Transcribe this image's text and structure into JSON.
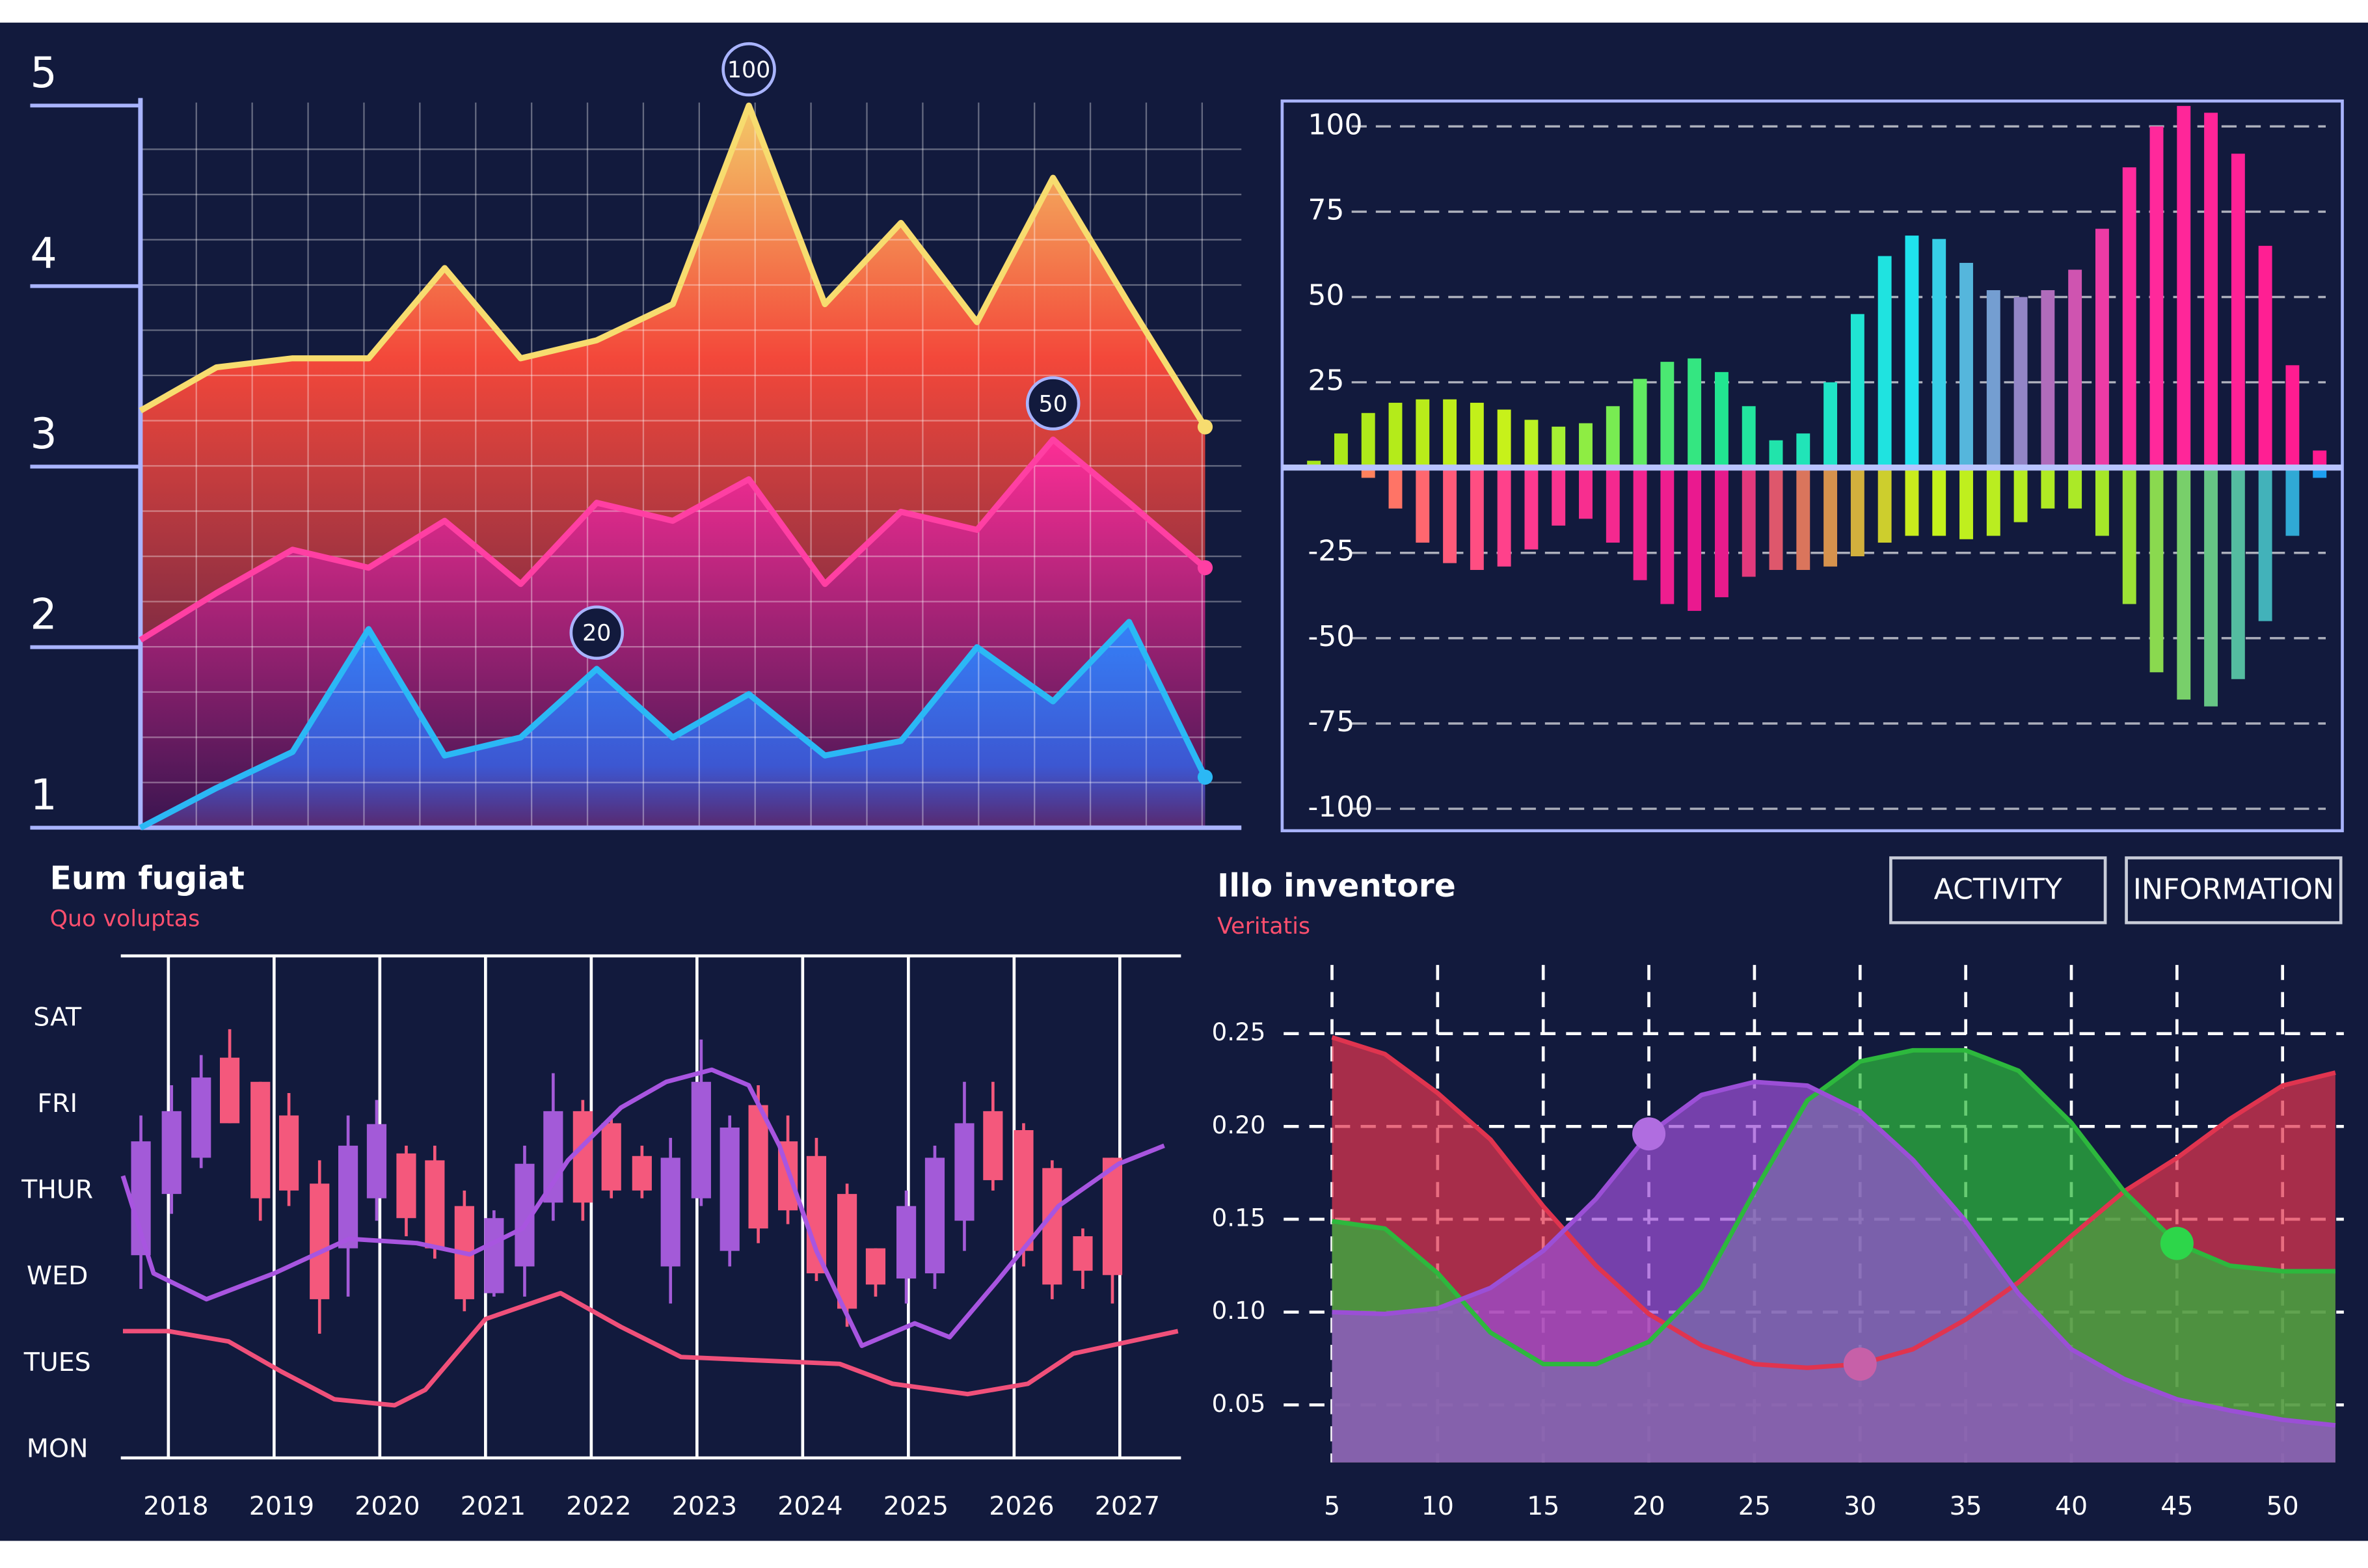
{
  "chart_data": [
    {
      "type": "area",
      "categories": [
        null,
        null,
        null,
        null,
        null,
        null,
        null,
        null,
        null,
        null,
        null,
        null,
        null,
        null,
        null
      ],
      "ylim": [
        1,
        5
      ],
      "yticks": [
        1,
        2,
        3,
        4,
        5
      ],
      "series": [
        {
          "color": "#f7dc6f",
          "values": [
            3.31,
            3.55,
            3.6,
            3.6,
            4.1,
            3.6,
            3.7,
            3.9,
            5.0,
            3.9,
            4.35,
            3.8,
            4.6,
            3.9,
            3.22
          ]
        },
        {
          "color": "#ff3fa3",
          "values": [
            2.04,
            2.3,
            2.54,
            2.44,
            2.7,
            2.35,
            2.8,
            2.7,
            2.93,
            2.35,
            2.75,
            2.65,
            3.15,
            2.8,
            2.44
          ]
        },
        {
          "color": "#2bb8f5",
          "values": [
            1.0,
            1.22,
            1.42,
            2.1,
            1.4,
            1.5,
            1.88,
            1.5,
            1.74,
            1.4,
            1.48,
            2.0,
            1.7,
            2.14,
            1.28
          ]
        }
      ],
      "annotations": [
        "100",
        "50",
        "20"
      ]
    },
    {
      "type": "bar",
      "categories": [
        null,
        null,
        null,
        null,
        null,
        null,
        null,
        null,
        null,
        null,
        null,
        null,
        null,
        null,
        null,
        null,
        null,
        null,
        null,
        null,
        null,
        null,
        null,
        null,
        null,
        null,
        null,
        null,
        null,
        null,
        null,
        null,
        null,
        null,
        null,
        null,
        null,
        null
      ],
      "ylim": [
        -106,
        107
      ],
      "yticks": [
        100,
        75,
        50,
        25,
        -25,
        -50,
        -75,
        -100
      ],
      "series": [
        {
          "colors": [
            "#a6e61a",
            "#c9f21a",
            "#22e58e",
            "#1fe3f0",
            "#ff2c9e",
            "#ff1a8f"
          ],
          "values": [
            2,
            10,
            16,
            19,
            20,
            20,
            19,
            17,
            14,
            12,
            13,
            18,
            26,
            31,
            32,
            28,
            18,
            8,
            10,
            25,
            45,
            62,
            68,
            67,
            60,
            52,
            50,
            52,
            58,
            70,
            88,
            100,
            106,
            104,
            92,
            65,
            30,
            5
          ]
        },
        {
          "colors": [
            "#ff9a4a",
            "#ff3c8f",
            "#e8158f",
            "#c8f21a",
            "#a3e62a",
            "#1e9ff0"
          ],
          "values": [
            0,
            0,
            -3,
            -12,
            -22,
            -28,
            -30,
            -29,
            -24,
            -17,
            -15,
            -22,
            -33,
            -40,
            -42,
            -38,
            -32,
            -30,
            -30,
            -29,
            -26,
            -22,
            -20,
            -20,
            -21,
            -20,
            -16,
            -12,
            -12,
            -20,
            -40,
            -60,
            -68,
            -70,
            -62,
            -45,
            -20,
            -3
          ]
        }
      ]
    },
    {
      "type": "candlestick",
      "title": "Eum fugiat",
      "subtitle": "Quo voluptas",
      "xlim": [
        2017.55,
        2027.55
      ],
      "xticks": [
        2018,
        2019,
        2020,
        2021,
        2022,
        2023,
        2024,
        2025,
        2026,
        2027
      ],
      "ylim": [
        -0.09,
        5.73
      ],
      "yticks": [
        {
          "value": 0,
          "label": "MON"
        },
        {
          "value": 1,
          "label": "TUES"
        },
        {
          "value": 2,
          "label": "WED"
        },
        {
          "value": 3,
          "label": "THUR"
        },
        {
          "value": 4,
          "label": "FRI"
        },
        {
          "value": 5,
          "label": "SAT"
        }
      ],
      "x": [
        2017.74,
        2018.03,
        2018.31,
        2018.58,
        2018.87,
        2019.14,
        2019.43,
        2019.7,
        2019.97,
        2020.25,
        2020.52,
        2020.8,
        2021.08,
        2021.37,
        2021.64,
        2021.92,
        2022.19,
        2022.48,
        2022.75,
        2023.04,
        2023.31,
        2023.58,
        2023.86,
        2024.13,
        2024.42,
        2024.69,
        2024.98,
        2025.25,
        2025.53,
        2025.8,
        2026.09,
        2026.36,
        2026.65,
        2026.93
      ],
      "open": [
        2.26,
        2.97,
        3.39,
        4.55,
        4.27,
        3.88,
        3.09,
        2.34,
        2.92,
        3.44,
        3.36,
        2.83,
        1.82,
        2.13,
        2.87,
        3.93,
        3.79,
        3.41,
        2.13,
        2.92,
        2.31,
        4.0,
        3.58,
        3.41,
        2.97,
        2.34,
        1.99,
        2.05,
        2.66,
        3.93,
        3.71,
        3.27,
        2.48,
        3.39
      ],
      "high": [
        3.88,
        4.23,
        4.58,
        4.88,
        4.27,
        4.14,
        3.36,
        3.88,
        4.06,
        3.53,
        3.53,
        3.01,
        2.78,
        3.53,
        4.37,
        4.06,
        3.88,
        3.53,
        3.62,
        4.76,
        3.88,
        4.23,
        3.88,
        3.62,
        3.09,
        2.34,
        3.01,
        3.53,
        4.27,
        4.27,
        3.79,
        3.36,
        2.57,
        3.39
      ],
      "low": [
        1.87,
        2.74,
        3.27,
        3.79,
        2.66,
        2.83,
        1.35,
        1.78,
        2.66,
        2.48,
        2.22,
        1.61,
        1.78,
        1.78,
        2.66,
        2.66,
        2.92,
        2.92,
        1.7,
        2.83,
        2.13,
        2.4,
        2.62,
        1.96,
        1.43,
        1.78,
        1.7,
        1.87,
        2.31,
        3.01,
        2.13,
        1.75,
        1.87,
        1.7
      ],
      "close": [
        3.58,
        3.93,
        4.32,
        3.79,
        2.92,
        3.01,
        1.75,
        3.53,
        3.78,
        2.69,
        2.34,
        1.75,
        2.69,
        3.32,
        3.93,
        2.87,
        3.01,
        3.01,
        3.39,
        4.27,
        3.74,
        2.57,
        2.78,
        2.05,
        1.64,
        1.92,
        2.83,
        3.39,
        3.79,
        3.13,
        2.31,
        1.92,
        2.08,
        2.03
      ],
      "up_color": "#a35ad8",
      "down_color": "#f4587c",
      "series": [
        {
          "color": "#a855e0",
          "x": [
            2017.57,
            2017.86,
            2018.36,
            2019.0,
            2019.71,
            2020.35,
            2020.85,
            2021.35,
            2021.78,
            2022.28,
            2022.71,
            2023.14,
            2023.49,
            2023.78,
            2024.13,
            2024.56,
            2025.06,
            2025.39,
            2025.84,
            2026.42,
            2026.99,
            2027.42
          ],
          "values": [
            3.18,
            2.05,
            1.75,
            2.05,
            2.45,
            2.4,
            2.27,
            2.57,
            3.36,
            3.97,
            4.27,
            4.41,
            4.23,
            3.53,
            2.31,
            1.21,
            1.47,
            1.31,
            1.96,
            2.83,
            3.32,
            3.53
          ]
        },
        {
          "color": "#f0507a",
          "x": [
            2017.57,
            2018.0,
            2018.57,
            2019.07,
            2019.57,
            2020.14,
            2020.43,
            2021.0,
            2021.71,
            2022.28,
            2022.85,
            2023.42,
            2024.35,
            2024.85,
            2025.56,
            2026.13,
            2026.56,
            2027.55
          ],
          "values": [
            1.38,
            1.38,
            1.26,
            0.91,
            0.59,
            0.52,
            0.7,
            1.52,
            1.82,
            1.43,
            1.08,
            1.05,
            1.0,
            0.77,
            0.65,
            0.77,
            1.12,
            1.38
          ]
        }
      ]
    },
    {
      "type": "area",
      "title": "Illo inventore",
      "subtitle": "Veritatis",
      "buttons": [
        "ACTIVITY",
        "INFORMATION"
      ],
      "x": [
        5,
        7.5,
        10,
        12.5,
        15,
        17.5,
        20,
        22.5,
        25,
        27.5,
        30,
        32.5,
        35,
        37.5,
        40,
        42.5,
        45,
        47.5,
        50,
        52.5
      ],
      "xlim": [
        5,
        52.9
      ],
      "xticks": [
        5,
        10,
        15,
        20,
        25,
        30,
        35,
        40,
        45,
        50
      ],
      "ylim": [
        0.019,
        0.287
      ],
      "yticks": [
        0.05,
        {
          "value": 0.1,
          "label": "0.10"
        },
        0.15,
        {
          "value": 0.2,
          "label": "0.20"
        },
        0.25
      ],
      "grid": true,
      "series": [
        {
          "color": "#e0344f",
          "values": [
            0.248,
            0.239,
            0.218,
            0.193,
            0.157,
            0.125,
            0.099,
            0.082,
            0.072,
            0.07,
            0.072,
            0.08,
            0.096,
            0.116,
            0.141,
            0.165,
            0.183,
            0.204,
            0.222,
            0.229
          ]
        },
        {
          "color": "#2db83d",
          "values": [
            0.149,
            0.145,
            0.121,
            0.089,
            0.072,
            0.072,
            0.084,
            0.113,
            0.165,
            0.214,
            0.235,
            0.241,
            0.241,
            0.23,
            0.202,
            0.165,
            0.137,
            0.125,
            0.122,
            0.122
          ]
        },
        {
          "color": "#9b4fd6",
          "values": [
            0.1,
            0.099,
            0.102,
            0.113,
            0.133,
            0.161,
            0.196,
            0.217,
            0.224,
            0.222,
            0.208,
            0.182,
            0.149,
            0.11,
            0.08,
            0.064,
            0.053,
            0.047,
            0.042,
            0.039
          ]
        }
      ]
    }
  ]
}
